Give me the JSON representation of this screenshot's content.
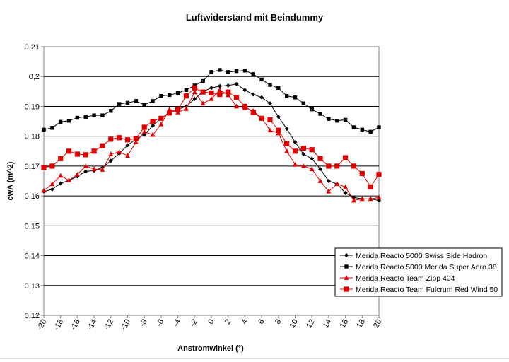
{
  "chart_data": {
    "type": "line",
    "title": "Luftwiderstand mit Beindummy",
    "xlabel": "Anströmwinkel (°)",
    "ylabel": "cwA (m^2)",
    "xlim": [
      -20,
      20
    ],
    "ylim": [
      0.12,
      0.21
    ],
    "x_ticks": [
      "-20",
      "-18",
      "-16",
      "-14",
      "-12",
      "-10",
      "-8",
      "-6",
      "-4",
      "-2",
      "0",
      "2",
      "4",
      "6",
      "8",
      "10",
      "12",
      "14",
      "16",
      "18",
      "20"
    ],
    "y_ticks": [
      "0,12",
      "0,13",
      "0,14",
      "0,15",
      "0,16",
      "0,17",
      "0,18",
      "0,19",
      "0,2",
      "0,21"
    ],
    "grid": "horizontal",
    "legend_position": "bottom-right",
    "x": [
      -20,
      -19,
      -18,
      -17,
      -16,
      -15,
      -14,
      -13,
      -12,
      -11,
      -10,
      -9,
      -8,
      -7,
      -6,
      -5,
      -4,
      -3,
      -2,
      -1,
      0,
      1,
      2,
      3,
      4,
      5,
      6,
      7,
      8,
      9,
      10,
      11,
      12,
      13,
      14,
      15,
      16,
      17,
      18,
      19,
      20
    ],
    "series": [
      {
        "name": "Merida Reacto 5000 Swiss Side Hadron",
        "color": "#000000",
        "marker": "diamond",
        "values": [
          0.1615,
          0.1622,
          0.1642,
          0.1652,
          0.1665,
          0.1682,
          0.1685,
          0.1695,
          0.1718,
          0.1742,
          0.177,
          0.179,
          0.1805,
          0.1835,
          0.186,
          0.1878,
          0.189,
          0.19,
          0.1925,
          0.195,
          0.1962,
          0.1968,
          0.197,
          0.1975,
          0.1955,
          0.194,
          0.193,
          0.191,
          0.1865,
          0.1825,
          0.178,
          0.174,
          0.1725,
          0.169,
          0.165,
          0.164,
          0.161,
          0.1595,
          0.159,
          0.159,
          0.1585
        ]
      },
      {
        "name": "Merida Reacto 5000 Merida Super Aero 38",
        "color": "#000000",
        "marker": "square",
        "values": [
          0.1822,
          0.1828,
          0.1848,
          0.1852,
          0.1862,
          0.1865,
          0.187,
          0.187,
          0.1885,
          0.1908,
          0.1912,
          0.1918,
          0.1905,
          0.1918,
          0.1935,
          0.1938,
          0.1945,
          0.1955,
          0.197,
          0.1985,
          0.2015,
          0.2022,
          0.2015,
          0.2018,
          0.202,
          0.2008,
          0.199,
          0.1972,
          0.1962,
          0.1935,
          0.193,
          0.191,
          0.189,
          0.1875,
          0.1858,
          0.1852,
          0.1855,
          0.183,
          0.1822,
          0.1815,
          0.183
        ]
      },
      {
        "name": "Merida Reacto Team Zipp 404",
        "color": "#e00000",
        "marker": "triangle",
        "values": [
          0.1618,
          0.164,
          0.1668,
          0.1652,
          0.1672,
          0.17,
          0.169,
          0.1688,
          0.174,
          0.1748,
          0.1735,
          0.178,
          0.1815,
          0.1805,
          0.184,
          0.189,
          0.188,
          0.1892,
          0.1948,
          0.191,
          0.1925,
          0.1955,
          0.1938,
          0.19,
          0.1895,
          0.1885,
          0.186,
          0.182,
          0.181,
          0.175,
          0.1705,
          0.17,
          0.169,
          0.165,
          0.1615,
          0.164,
          0.163,
          0.1585,
          0.159,
          0.159,
          0.1595
        ]
      },
      {
        "name": "Merida Reacto Team Fulcrum Red Wind 50",
        "color": "#e00000",
        "marker": "square",
        "values": [
          0.1695,
          0.17,
          0.1725,
          0.175,
          0.174,
          0.1738,
          0.175,
          0.1768,
          0.179,
          0.1795,
          0.1788,
          0.1792,
          0.183,
          0.185,
          0.186,
          0.1878,
          0.189,
          0.1935,
          0.1962,
          0.1948,
          0.1945,
          0.194,
          0.1948,
          0.193,
          0.19,
          0.188,
          0.186,
          0.1855,
          0.182,
          0.1775,
          0.175,
          0.176,
          0.1755,
          0.1725,
          0.17,
          0.17,
          0.1728,
          0.17,
          0.1675,
          0.163,
          0.1672
        ]
      }
    ]
  }
}
